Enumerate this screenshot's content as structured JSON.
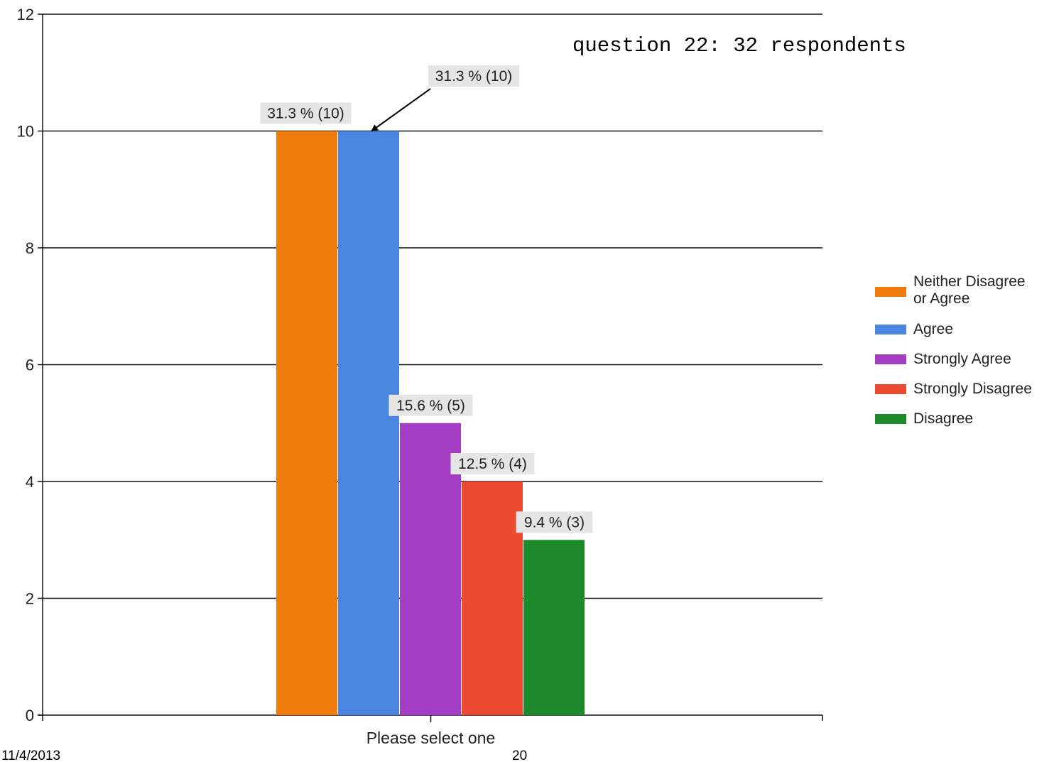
{
  "chart_data": {
    "type": "bar",
    "categories": [
      "Please select one"
    ],
    "series": [
      {
        "name": "Neither Disagree or Agree",
        "values": [
          10
        ],
        "label": "31.3 % (10)",
        "color": "#EE7B0A"
      },
      {
        "name": "Agree",
        "values": [
          10
        ],
        "label": "31.3 % (10)",
        "color": "#4A85E0"
      },
      {
        "name": "Strongly Agree",
        "values": [
          5
        ],
        "label": "15.6 % (5)",
        "color": "#A33EC4"
      },
      {
        "name": "Strongly Disagree",
        "values": [
          4
        ],
        "label": "12.5 % (4)",
        "color": "#EC4A30"
      },
      {
        "name": "Disagree",
        "values": [
          3
        ],
        "label": "9.4 % (3)",
        "color": "#1F8A2A"
      }
    ],
    "legend": {
      "placement": "right",
      "entries": [
        {
          "lines": [
            "Neither Disagree",
            "or Agree"
          ],
          "color": "#EE7B0A"
        },
        {
          "lines": [
            "Agree"
          ],
          "color": "#4A85E0"
        },
        {
          "lines": [
            "Strongly Agree"
          ],
          "color": "#A33EC4"
        },
        {
          "lines": [
            "Strongly Disagree"
          ],
          "color": "#EC4A30"
        },
        {
          "lines": [
            "Disagree"
          ],
          "color": "#1F8A2A"
        }
      ]
    },
    "ylim": [
      0,
      12
    ],
    "yticks": [
      0,
      2,
      4,
      6,
      8,
      10,
      12
    ],
    "grid": true,
    "annotation": "question 22: 32 respondents"
  },
  "footer": {
    "date": "11/4/2013",
    "page_number": "20"
  }
}
